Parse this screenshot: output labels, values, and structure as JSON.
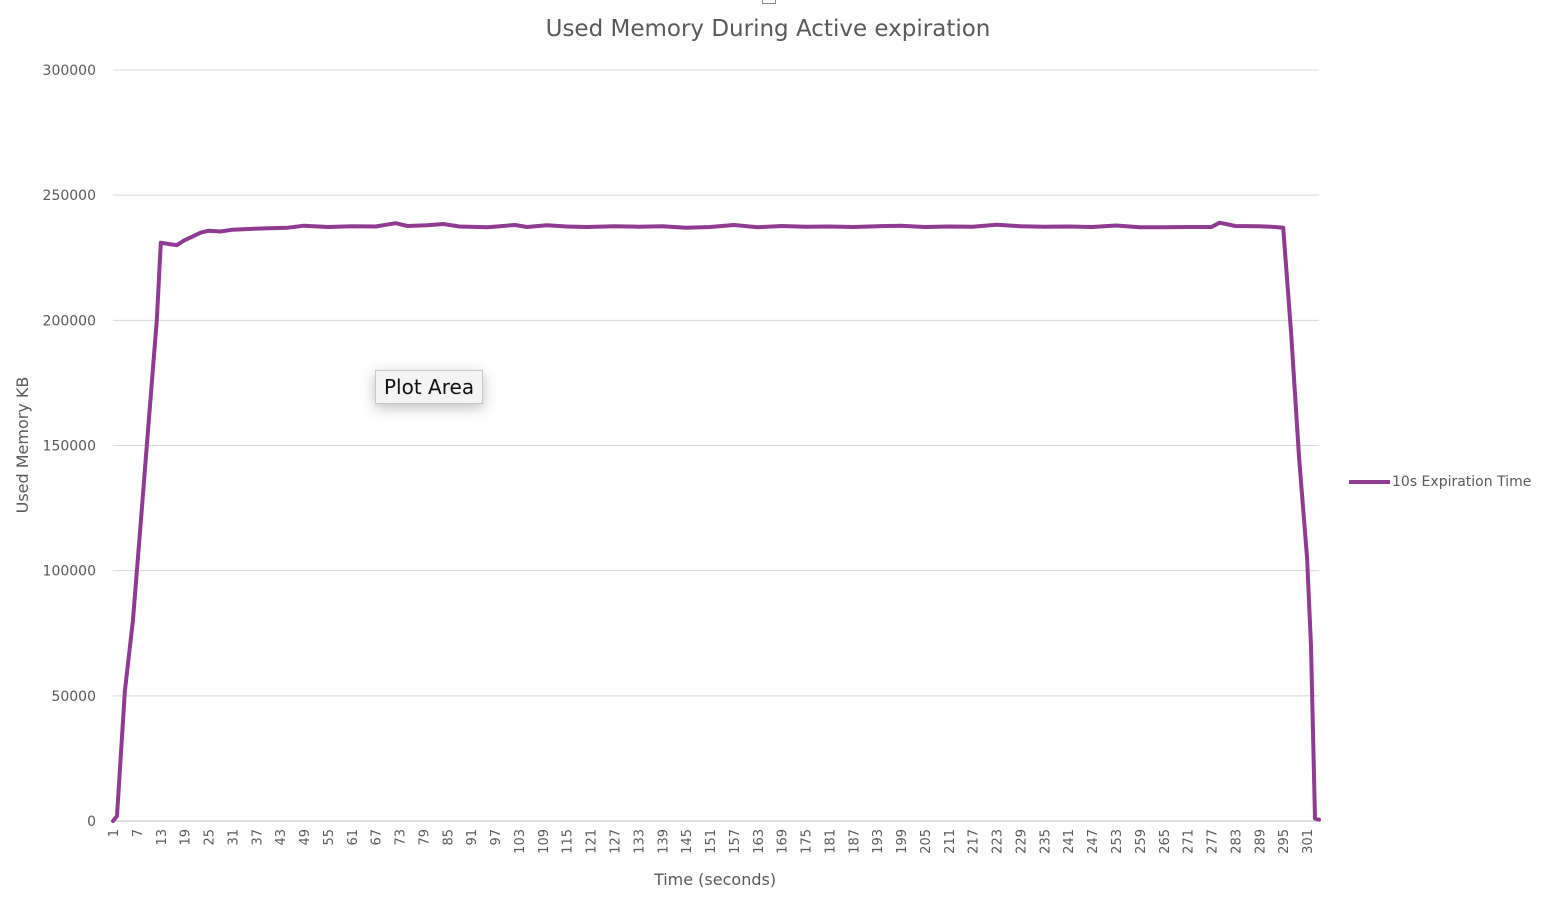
{
  "chart_data": {
    "type": "line",
    "title": "Used Memory During Active expiration",
    "xlabel": "Time (seconds)",
    "ylabel": "Used Memory KB",
    "ylim": [
      0,
      300000
    ],
    "yticks": [
      0,
      50000,
      100000,
      150000,
      200000,
      250000,
      300000
    ],
    "grid": "horizontal",
    "legend_position": "right",
    "x_start": 1,
    "x_tick_step": 6,
    "x_tick_labels": [
      "1",
      "7",
      "13",
      "19",
      "25",
      "31",
      "37",
      "43",
      "49",
      "55",
      "61",
      "67",
      "73",
      "79",
      "85",
      "91",
      "97",
      "103",
      "109",
      "115",
      "121",
      "127",
      "133",
      "139",
      "145",
      "151",
      "157",
      "163",
      "169",
      "175",
      "181",
      "187",
      "193",
      "199",
      "205",
      "211",
      "217",
      "223",
      "229",
      "235",
      "241",
      "247",
      "253",
      "259",
      "265",
      "271",
      "277",
      "283",
      "289",
      "295",
      "301"
    ],
    "series": [
      {
        "name": "10s Expiration Time",
        "color": "#8e3b91",
        "points": [
          [
            1,
            0
          ],
          [
            2,
            2000
          ],
          [
            4,
            52000
          ],
          [
            6,
            80000
          ],
          [
            8,
            120000
          ],
          [
            10,
            160000
          ],
          [
            12,
            200000
          ],
          [
            13,
            231000
          ],
          [
            15,
            230500
          ],
          [
            17,
            230000
          ],
          [
            19,
            232000
          ],
          [
            21,
            233500
          ],
          [
            23,
            235000
          ],
          [
            25,
            235800
          ],
          [
            28,
            235500
          ],
          [
            31,
            236200
          ],
          [
            35,
            236500
          ],
          [
            40,
            236800
          ],
          [
            45,
            237000
          ],
          [
            49,
            237800
          ],
          [
            55,
            237300
          ],
          [
            61,
            237600
          ],
          [
            67,
            237500
          ],
          [
            72,
            238800
          ],
          [
            75,
            237700
          ],
          [
            80,
            238000
          ],
          [
            84,
            238500
          ],
          [
            88,
            237500
          ],
          [
            95,
            237200
          ],
          [
            102,
            238100
          ],
          [
            105,
            237300
          ],
          [
            110,
            238000
          ],
          [
            115,
            237500
          ],
          [
            120,
            237300
          ],
          [
            127,
            237600
          ],
          [
            133,
            237400
          ],
          [
            139,
            237600
          ],
          [
            145,
            237000
          ],
          [
            151,
            237300
          ],
          [
            157,
            238100
          ],
          [
            163,
            237200
          ],
          [
            169,
            237700
          ],
          [
            175,
            237400
          ],
          [
            181,
            237500
          ],
          [
            187,
            237300
          ],
          [
            193,
            237600
          ],
          [
            199,
            237800
          ],
          [
            205,
            237300
          ],
          [
            211,
            237500
          ],
          [
            217,
            237400
          ],
          [
            223,
            238200
          ],
          [
            229,
            237600
          ],
          [
            235,
            237400
          ],
          [
            241,
            237500
          ],
          [
            247,
            237300
          ],
          [
            253,
            237900
          ],
          [
            259,
            237200
          ],
          [
            265,
            237200
          ],
          [
            271,
            237300
          ],
          [
            277,
            237300
          ],
          [
            279,
            239000
          ],
          [
            283,
            237700
          ],
          [
            289,
            237600
          ],
          [
            293,
            237300
          ],
          [
            295,
            237000
          ],
          [
            297,
            195000
          ],
          [
            299,
            145000
          ],
          [
            301,
            105000
          ],
          [
            302,
            70000
          ],
          [
            303,
            1000
          ],
          [
            304,
            500
          ]
        ]
      }
    ]
  },
  "tooltip": {
    "label": "Plot Area"
  }
}
